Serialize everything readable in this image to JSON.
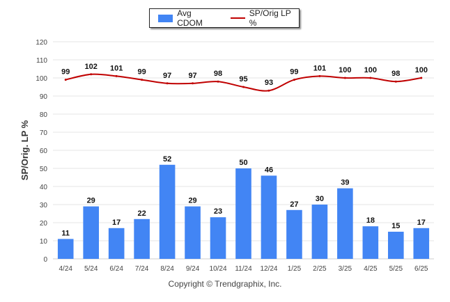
{
  "colors": {
    "bar": "#4285f4",
    "line": "#c00000",
    "grid": "#e6e6e6",
    "axis_text": "#444444"
  },
  "legend": {
    "bar_label": "Avg CDOM",
    "line_label": "SP/Orig LP %"
  },
  "copyright": "Copyright © Trendgraphix, Inc.",
  "chart_data": {
    "type": "bar",
    "title": "",
    "ylabel": "SP/Orig. LP %",
    "xlabel": "",
    "ylim": [
      0,
      120
    ],
    "yticks": [
      0,
      10,
      20,
      30,
      40,
      50,
      60,
      70,
      80,
      90,
      100,
      110,
      120
    ],
    "grid": true,
    "legend_position": "top-center",
    "categories": [
      "4/24",
      "5/24",
      "6/24",
      "7/24",
      "8/24",
      "9/24",
      "10/24",
      "11/24",
      "12/24",
      "1/25",
      "2/25",
      "3/25",
      "4/25",
      "5/25",
      "6/25"
    ],
    "series": [
      {
        "name": "Avg CDOM",
        "type": "bar",
        "values": [
          11,
          29,
          17,
          22,
          52,
          29,
          23,
          50,
          46,
          27,
          30,
          39,
          18,
          15,
          17
        ]
      },
      {
        "name": "SP/Orig LP %",
        "type": "line",
        "values": [
          99,
          102,
          101,
          99,
          97,
          97,
          98,
          95,
          93,
          99,
          101,
          100,
          100,
          98,
          100
        ]
      }
    ]
  }
}
